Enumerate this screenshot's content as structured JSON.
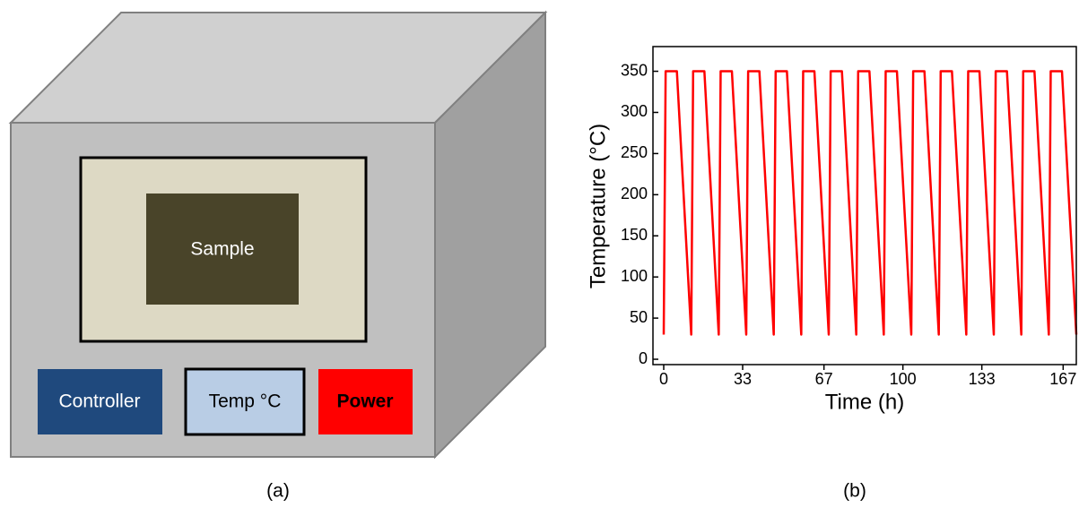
{
  "diagram": {
    "window_label": "Sample",
    "buttons": [
      "Controller",
      "Temp °C",
      "Power"
    ],
    "caption": "(a)"
  },
  "chart_data": {
    "type": "line",
    "caption": "(b)",
    "x_label": "Time (h)",
    "y_label": "Temperature (°C)",
    "color": "#ff0000",
    "x": [
      0,
      0.8,
      5.5,
      11.5,
      12.3,
      17,
      23,
      23.8,
      28.5,
      34.5,
      35.3,
      40,
      46,
      46.8,
      51.5,
      57.5,
      58.3,
      63,
      69,
      69.8,
      74.5,
      80.5,
      81.3,
      86,
      92,
      92.8,
      97.5,
      103.5,
      104.3,
      109,
      115,
      115.8,
      120.5,
      126.5,
      127.3,
      132,
      138,
      138.8,
      143.5,
      149.5,
      150.3,
      155,
      161,
      161.8,
      166.5,
      172.5
    ],
    "values": [
      30,
      350,
      350,
      30,
      350,
      350,
      30,
      350,
      350,
      30,
      350,
      350,
      30,
      350,
      350,
      30,
      350,
      350,
      30,
      350,
      350,
      30,
      350,
      350,
      30,
      350,
      350,
      30,
      350,
      350,
      30,
      350,
      350,
      30,
      350,
      350,
      30,
      350,
      350,
      30,
      350,
      350,
      30,
      350,
      350,
      30
    ],
    "xlim": [
      -4.5,
      172.5
    ],
    "ylim": [
      -6.5,
      380
    ],
    "xticks": [
      0,
      33,
      67,
      100,
      133,
      167
    ],
    "yticks": [
      0,
      50,
      100,
      150,
      200,
      250,
      300,
      350
    ]
  }
}
